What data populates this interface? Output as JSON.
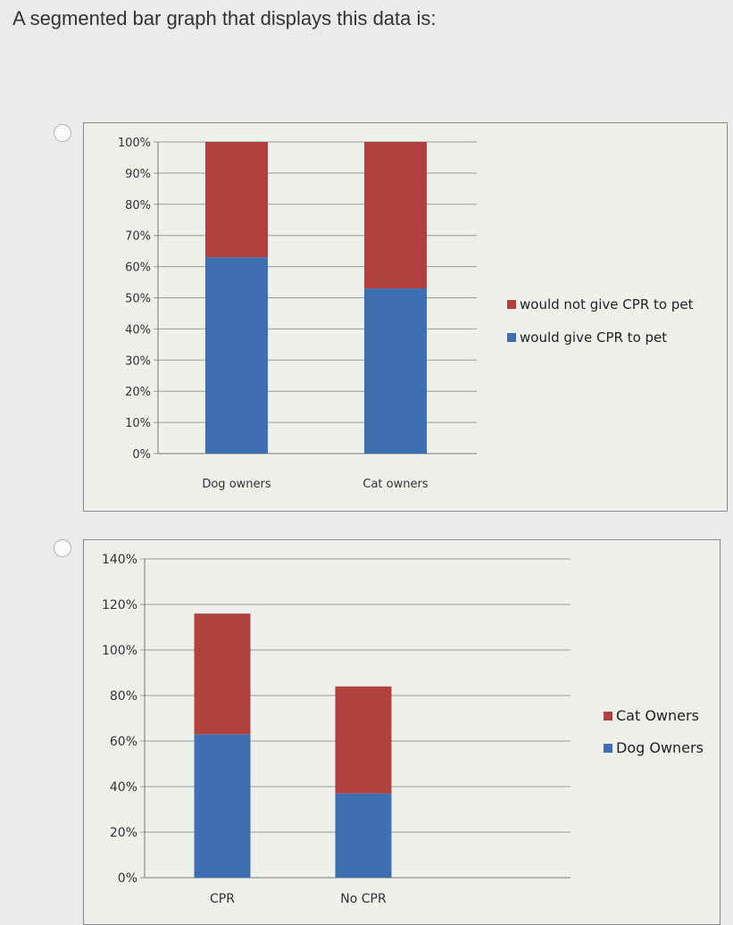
{
  "question": "A segmented bar graph that displays this data is:",
  "options": [
    {
      "id": "option-1",
      "selected": false
    },
    {
      "id": "option-2",
      "selected": false
    }
  ],
  "colors": {
    "red": "#b0413e",
    "blue": "#3e6fb0",
    "grid": "#9a9a9a"
  },
  "chart_data": [
    {
      "type": "bar",
      "stacked": true,
      "categories": [
        "Dog owners",
        "Cat owners"
      ],
      "series": [
        {
          "name": "would give CPR to pet",
          "color": "#3e6fb0",
          "values": [
            63,
            53
          ]
        },
        {
          "name": "would not give CPR to pet",
          "color": "#b0413e",
          "values": [
            37,
            47
          ]
        }
      ],
      "ylim": [
        0,
        100
      ],
      "yticks": [
        "0%",
        "10%",
        "20%",
        "30%",
        "40%",
        "50%",
        "60%",
        "70%",
        "80%",
        "90%",
        "100%"
      ],
      "legend": [
        "would not give CPR to pet",
        "would give CPR to pet"
      ],
      "legend_position": "right",
      "grid": true
    },
    {
      "type": "bar",
      "stacked": true,
      "categories": [
        "CPR",
        "No CPR"
      ],
      "series": [
        {
          "name": "Dog Owners",
          "color": "#3e6fb0",
          "values": [
            63,
            37
          ]
        },
        {
          "name": "Cat Owners",
          "color": "#b0413e",
          "values": [
            53,
            47
          ]
        }
      ],
      "ylim": [
        0,
        140
      ],
      "yticks": [
        "0%",
        "20%",
        "40%",
        "60%",
        "80%",
        "100%",
        "120%",
        "140%"
      ],
      "legend": [
        "Cat Owners",
        "Dog Owners"
      ],
      "legend_position": "right",
      "grid": true
    }
  ]
}
